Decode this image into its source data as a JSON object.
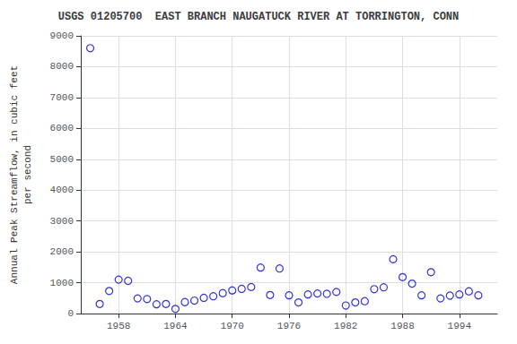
{
  "chart_data": {
    "type": "scatter",
    "title": "USGS 01205700  EAST BRANCH NAUGATUCK RIVER AT TORRINGTON, CONN",
    "ylabel": "Annual Peak Streamflow, in cubic feet\nper second",
    "x": [
      1955,
      1956,
      1957,
      1958,
      1959,
      1960,
      1961,
      1962,
      1963,
      1964,
      1965,
      1966,
      1967,
      1968,
      1969,
      1970,
      1971,
      1972,
      1973,
      1974,
      1975,
      1976,
      1977,
      1978,
      1979,
      1980,
      1981,
      1982,
      1983,
      1984,
      1985,
      1986,
      1987,
      1988,
      1989,
      1990,
      1991,
      1992,
      1993,
      1994,
      1995,
      1996
    ],
    "values": [
      8600,
      310,
      730,
      1100,
      1060,
      490,
      470,
      300,
      310,
      150,
      370,
      420,
      510,
      560,
      660,
      750,
      800,
      860,
      1490,
      600,
      1460,
      590,
      360,
      620,
      650,
      640,
      700,
      260,
      360,
      400,
      790,
      850,
      1760,
      1180,
      970,
      590,
      1340,
      490,
      580,
      620,
      720,
      590
    ],
    "color": "#0000cc",
    "marker": "open_circle",
    "xlim": [
      1954,
      1998
    ],
    "xticks": [
      1958,
      1964,
      1970,
      1976,
      1982,
      1988,
      1994
    ],
    "ylim": [
      0,
      9000
    ],
    "yticks": [
      0,
      1000,
      2000,
      3000,
      4000,
      5000,
      6000,
      7000,
      8000,
      9000
    ],
    "grid": true
  }
}
